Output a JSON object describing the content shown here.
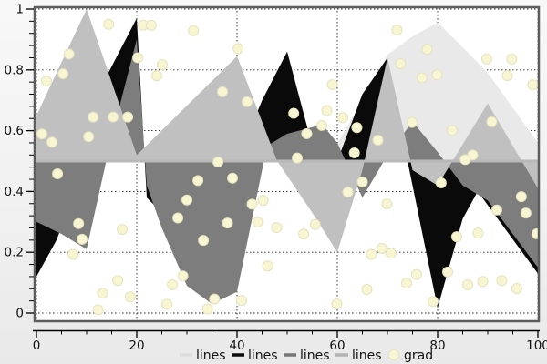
{
  "chart_data": {
    "type": "area",
    "title": "",
    "xlabel": "",
    "ylabel": "",
    "xlim": [
      0,
      100
    ],
    "ylim": [
      0,
      1
    ],
    "grid": "dotted-major",
    "legend_position": "bottom-center",
    "plot_bg": "#ffffff",
    "frame_color": "#5d5d5d",
    "baseline": 0.5,
    "baseline_color": "#b8b8b8",
    "x_ticks": {
      "major": [
        0,
        20,
        40,
        60,
        80,
        100
      ],
      "labels": [
        "0",
        "20",
        "40",
        "60",
        "80",
        "100"
      ],
      "minor_step": 5
    },
    "y_ticks": {
      "major": [
        0,
        0.2,
        0.4,
        0.6,
        0.8,
        1
      ],
      "labels": [
        "0",
        "0.2",
        "0.4",
        "0.6",
        "0.8",
        "1"
      ],
      "minor_step": 0.04
    },
    "series": [
      {
        "name": "lines",
        "color": "#e9e9e9",
        "swatch": "#dcdcdc",
        "points": [
          [
            0,
            0.5
          ],
          [
            58,
            0.5
          ],
          [
            65,
            0.7
          ],
          [
            70,
            0.85
          ],
          [
            75,
            0.91
          ],
          [
            80,
            0.956
          ],
          [
            85,
            0.875
          ],
          [
            90,
            0.79
          ],
          [
            95,
            0.675
          ],
          [
            100,
            0.56
          ]
        ]
      },
      {
        "name": "lines",
        "color": "#0a0a0a",
        "swatch": "#0a0a0a",
        "points": [
          [
            0,
            0.12
          ],
          [
            4,
            0.24
          ],
          [
            10,
            0.5
          ],
          [
            14,
            0.78
          ],
          [
            20,
            0.97
          ],
          [
            22,
            0.38
          ],
          [
            25,
            0.33
          ],
          [
            28,
            0.5
          ],
          [
            40,
            0.5
          ],
          [
            45,
            0.7
          ],
          [
            50,
            0.86
          ],
          [
            55,
            0.55
          ],
          [
            60,
            0.5
          ],
          [
            65,
            0.72
          ],
          [
            70,
            0.84
          ],
          [
            74,
            0.5
          ],
          [
            80,
            0.017
          ],
          [
            85,
            0.31
          ],
          [
            88,
            0.4
          ],
          [
            100,
            0.13
          ]
        ]
      },
      {
        "name": "lines",
        "color": "#7d7d7d",
        "swatch": "#777777",
        "points": [
          [
            0,
            0.3
          ],
          [
            5,
            0.26
          ],
          [
            10,
            0.21
          ],
          [
            15,
            0.58
          ],
          [
            20,
            0.9
          ],
          [
            22,
            0.42
          ],
          [
            25,
            0.28
          ],
          [
            30,
            0.09
          ],
          [
            35,
            0.03
          ],
          [
            40,
            0.07
          ],
          [
            46,
            0.55
          ],
          [
            50,
            0.59
          ],
          [
            57,
            0.62
          ],
          [
            60,
            0.56
          ],
          [
            65,
            0.38
          ],
          [
            70,
            0.52
          ],
          [
            75,
            0.63
          ],
          [
            80,
            0.53
          ],
          [
            85,
            0.42
          ],
          [
            90,
            0.37
          ],
          [
            95,
            0.26
          ],
          [
            100,
            0.15
          ]
        ]
      },
      {
        "name": "lines",
        "color": "#c0c0c0",
        "swatch": "#b3b3b3",
        "points": [
          [
            0,
            0.65
          ],
          [
            10,
            1.0
          ],
          [
            20,
            0.52
          ],
          [
            40,
            0.845
          ],
          [
            48,
            0.5
          ],
          [
            55,
            0.33
          ],
          [
            60,
            0.2
          ],
          [
            65,
            0.47
          ],
          [
            70,
            0.84
          ],
          [
            75,
            0.47
          ],
          [
            80,
            0.42
          ],
          [
            90,
            0.69
          ],
          [
            95,
            0.55
          ],
          [
            100,
            0.41
          ]
        ]
      }
    ],
    "scatter": {
      "name": "grad",
      "fill": "#f8f5d3",
      "edge": "#e6e2bd",
      "radius": 5.5,
      "points": [
        [
          14.4,
          0.95
        ],
        [
          21.3,
          0.947
        ],
        [
          22.9,
          0.947
        ],
        [
          31.3,
          0.929
        ],
        [
          40.2,
          0.87
        ],
        [
          6.5,
          0.852
        ],
        [
          20.2,
          0.84
        ],
        [
          25.1,
          0.817
        ],
        [
          5.3,
          0.787
        ],
        [
          24.0,
          0.781
        ],
        [
          2.0,
          0.763
        ],
        [
          37.1,
          0.728
        ],
        [
          42.0,
          0.695
        ],
        [
          51.3,
          0.657
        ],
        [
          11.3,
          0.645
        ],
        [
          15.3,
          0.645
        ],
        [
          18.2,
          0.645
        ],
        [
          1.1,
          0.589
        ],
        [
          10.4,
          0.58
        ],
        [
          3.1,
          0.562
        ],
        [
          36.2,
          0.497
        ],
        [
          71.9,
          0.931
        ],
        [
          77.9,
          0.868
        ],
        [
          89.8,
          0.836
        ],
        [
          94.8,
          0.836
        ],
        [
          72.6,
          0.82
        ],
        [
          79.9,
          0.784
        ],
        [
          93.9,
          0.781
        ],
        [
          76.9,
          0.774
        ],
        [
          99.0,
          0.751
        ],
        [
          59.0,
          0.751
        ],
        [
          57.9,
          0.666
        ],
        [
          61.1,
          0.643
        ],
        [
          63.9,
          0.61
        ],
        [
          56.9,
          0.617
        ],
        [
          53.9,
          0.59
        ],
        [
          68.1,
          0.569
        ],
        [
          74.9,
          0.627
        ],
        [
          82.9,
          0.601
        ],
        [
          90.8,
          0.629
        ],
        [
          63.4,
          0.527
        ],
        [
          52.0,
          0.51
        ],
        [
          87.0,
          0.52
        ],
        [
          85.5,
          0.505
        ],
        [
          4.2,
          0.458
        ],
        [
          32.2,
          0.436
        ],
        [
          39.1,
          0.444
        ],
        [
          30.0,
          0.372
        ],
        [
          28.2,
          0.313
        ],
        [
          8.4,
          0.294
        ],
        [
          9.1,
          0.243
        ],
        [
          38.1,
          0.296
        ],
        [
          44.1,
          0.299
        ],
        [
          43.0,
          0.358
        ],
        [
          45.2,
          0.371
        ],
        [
          33.3,
          0.239
        ],
        [
          7.3,
          0.193
        ],
        [
          17.1,
          0.275
        ],
        [
          16.2,
          0.107
        ],
        [
          13.2,
          0.065
        ],
        [
          18.7,
          0.053
        ],
        [
          12.3,
          0.011
        ],
        [
          26.0,
          0.029
        ],
        [
          27.1,
          0.093
        ],
        [
          29.2,
          0.122
        ],
        [
          35.5,
          0.046
        ],
        [
          34.1,
          0.013
        ],
        [
          40.9,
          0.041
        ],
        [
          46.1,
          0.155
        ],
        [
          47.9,
          0.281
        ],
        [
          65.0,
          0.431
        ],
        [
          62.1,
          0.398
        ],
        [
          69.9,
          0.359
        ],
        [
          80.7,
          0.428
        ],
        [
          96.7,
          0.383
        ],
        [
          97.6,
          0.329
        ],
        [
          91.8,
          0.339
        ],
        [
          99.8,
          0.261
        ],
        [
          83.8,
          0.251
        ],
        [
          88.1,
          0.263
        ],
        [
          55.6,
          0.291
        ],
        [
          53.3,
          0.26
        ],
        [
          68.9,
          0.213
        ],
        [
          66.8,
          0.193
        ],
        [
          70.7,
          0.197
        ],
        [
          82.0,
          0.135
        ],
        [
          75.8,
          0.127
        ],
        [
          73.8,
          0.098
        ],
        [
          86.0,
          0.093
        ],
        [
          89.0,
          0.104
        ],
        [
          92.8,
          0.107
        ],
        [
          95.8,
          0.081
        ],
        [
          65.9,
          0.078
        ],
        [
          59.9,
          0.03
        ],
        [
          79.1,
          0.038
        ]
      ]
    },
    "legend": [
      {
        "label": "lines",
        "swatch_type": "line",
        "color": "#dcdcdc"
      },
      {
        "label": "lines",
        "swatch_type": "line",
        "color": "#0a0a0a"
      },
      {
        "label": "lines",
        "swatch_type": "line",
        "color": "#777777"
      },
      {
        "label": "lines",
        "swatch_type": "line",
        "color": "#b3b3b3"
      },
      {
        "label": "grad",
        "swatch_type": "circle",
        "color": "#f8f5d3"
      }
    ]
  }
}
